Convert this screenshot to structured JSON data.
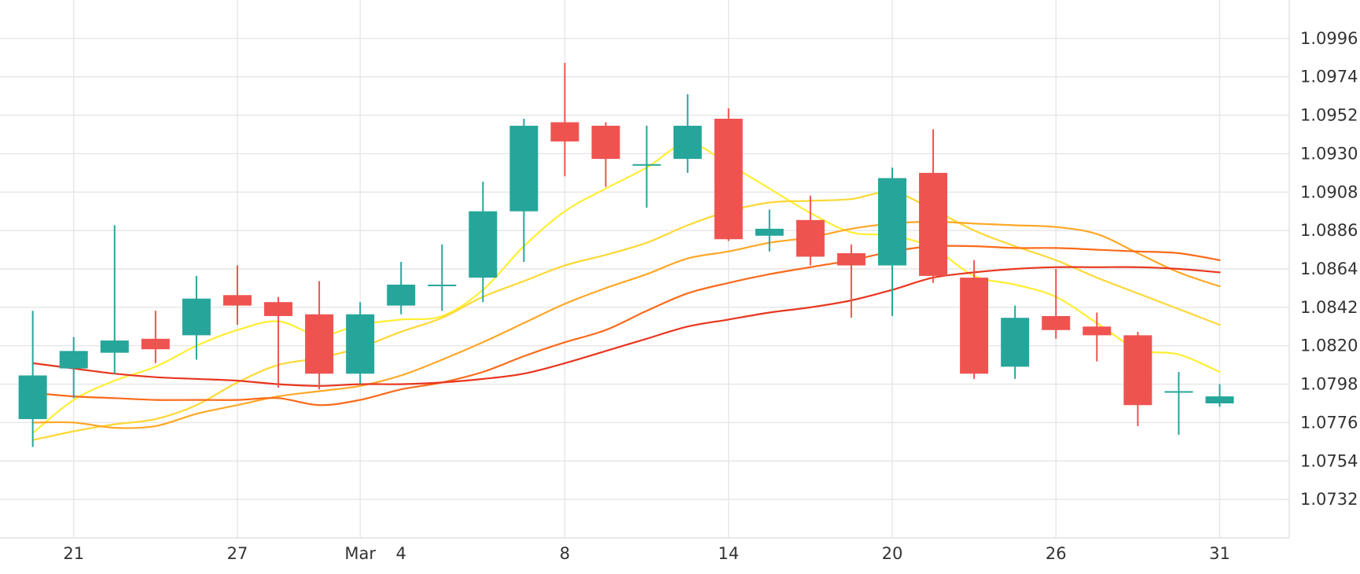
{
  "chart_data": {
    "type": "candlestick",
    "title": "",
    "xlabel": "",
    "ylabel": "",
    "ylim": [
      1.071,
      1.1018
    ],
    "y_ticks": [
      1.0732,
      1.0754,
      1.0776,
      1.0798,
      1.082,
      1.0842,
      1.0864,
      1.0886,
      1.0908,
      1.093,
      1.0952,
      1.0974,
      1.0996
    ],
    "x_range": [
      -0.8,
      30.7
    ],
    "x_ticks": [
      {
        "i": 1,
        "label": "21"
      },
      {
        "i": 5,
        "label": "27"
      },
      {
        "i": 8,
        "label": "Mar"
      },
      {
        "i": 9,
        "label": "4"
      },
      {
        "i": 13,
        "label": "8"
      },
      {
        "i": 17,
        "label": "14"
      },
      {
        "i": 21,
        "label": "20"
      },
      {
        "i": 25,
        "label": "26"
      },
      {
        "i": 29,
        "label": "31"
      }
    ],
    "x_gridlines": [
      1,
      5,
      8,
      13,
      17,
      21,
      25,
      29
    ],
    "colors": {
      "up": "#26a69a",
      "down": "#ef5350",
      "grid": "#e6e6e6"
    },
    "candles": [
      {
        "o": 1.0778,
        "h": 1.084,
        "l": 1.0762,
        "c": 1.0803
      },
      {
        "o": 1.0807,
        "h": 1.0825,
        "l": 1.079,
        "c": 1.0817
      },
      {
        "o": 1.0816,
        "h": 1.0889,
        "l": 1.0804,
        "c": 1.0823
      },
      {
        "o": 1.0824,
        "h": 1.084,
        "l": 1.081,
        "c": 1.0818
      },
      {
        "o": 1.0826,
        "h": 1.086,
        "l": 1.0812,
        "c": 1.0847
      },
      {
        "o": 1.0849,
        "h": 1.0866,
        "l": 1.0832,
        "c": 1.0843
      },
      {
        "o": 1.0845,
        "h": 1.0848,
        "l": 1.0796,
        "c": 1.0837
      },
      {
        "o": 1.0838,
        "h": 1.0857,
        "l": 1.0795,
        "c": 1.0804
      },
      {
        "o": 1.0804,
        "h": 1.0845,
        "l": 1.0798,
        "c": 1.0838
      },
      {
        "o": 1.0843,
        "h": 1.0868,
        "l": 1.0838,
        "c": 1.0855
      },
      {
        "o": 1.0855,
        "h": 1.0878,
        "l": 1.084,
        "c": 1.0855
      },
      {
        "o": 1.0859,
        "h": 1.0914,
        "l": 1.0845,
        "c": 1.0897
      },
      {
        "o": 1.0897,
        "h": 1.095,
        "l": 1.0868,
        "c": 1.0946
      },
      {
        "o": 1.0948,
        "h": 1.0982,
        "l": 1.0917,
        "c": 1.0937
      },
      {
        "o": 1.0946,
        "h": 1.0948,
        "l": 1.0911,
        "c": 1.0927
      },
      {
        "o": 1.0924,
        "h": 1.0946,
        "l": 1.0899,
        "c": 1.0924
      },
      {
        "o": 1.0927,
        "h": 1.0964,
        "l": 1.0919,
        "c": 1.0946
      },
      {
        "o": 1.095,
        "h": 1.0956,
        "l": 1.088,
        "c": 1.0881
      },
      {
        "o": 1.0883,
        "h": 1.0898,
        "l": 1.0874,
        "c": 1.0887
      },
      {
        "o": 1.0892,
        "h": 1.0906,
        "l": 1.0866,
        "c": 1.0871
      },
      {
        "o": 1.0873,
        "h": 1.0878,
        "l": 1.0836,
        "c": 1.0866
      },
      {
        "o": 1.0866,
        "h": 1.0922,
        "l": 1.0837,
        "c": 1.0916
      },
      {
        "o": 1.0919,
        "h": 1.0944,
        "l": 1.0856,
        "c": 1.086
      },
      {
        "o": 1.0859,
        "h": 1.0869,
        "l": 1.0801,
        "c": 1.0804
      },
      {
        "o": 1.0808,
        "h": 1.0843,
        "l": 1.0801,
        "c": 1.0836
      },
      {
        "o": 1.0837,
        "h": 1.0864,
        "l": 1.0824,
        "c": 1.0829
      },
      {
        "o": 1.0831,
        "h": 1.0839,
        "l": 1.0811,
        "c": 1.0826
      },
      {
        "o": 1.0826,
        "h": 1.0828,
        "l": 1.0774,
        "c": 1.0786
      },
      {
        "o": 1.0794,
        "h": 1.0805,
        "l": 1.0769,
        "c": 1.0794
      },
      {
        "o": 1.0787,
        "h": 1.0798,
        "l": 1.0785,
        "c": 1.0791
      }
    ],
    "moving_averages": [
      {
        "color": "#ffee33",
        "values": [
          1.077,
          1.0789,
          1.08,
          1.0808,
          1.082,
          1.0829,
          1.0834,
          1.0826,
          1.0832,
          1.0835,
          1.0837,
          1.0852,
          1.0877,
          1.0897,
          1.091,
          1.0922,
          1.0936,
          1.0924,
          1.091,
          1.0896,
          1.0885,
          1.0883,
          1.0876,
          1.086,
          1.0855,
          1.0848,
          1.0833,
          1.0818,
          1.0815,
          1.0805
        ]
      },
      {
        "color": "#fdd835",
        "values": [
          1.0766,
          1.0771,
          1.0775,
          1.0778,
          1.0786,
          1.0799,
          1.0809,
          1.0813,
          1.0819,
          1.0828,
          1.0836,
          1.0848,
          1.0857,
          1.0866,
          1.0872,
          1.0879,
          1.0889,
          1.0897,
          1.0902,
          1.0903,
          1.0904,
          1.0908,
          1.0898,
          1.0886,
          1.0877,
          1.0869,
          1.0859,
          1.085,
          1.0841,
          1.0832
        ]
      },
      {
        "color": "#ffa726",
        "values": [
          1.0776,
          1.0776,
          1.0773,
          1.0774,
          1.0781,
          1.0786,
          1.0791,
          1.0794,
          1.0797,
          1.0803,
          1.0812,
          1.0822,
          1.0833,
          1.0844,
          1.0853,
          1.0861,
          1.087,
          1.0874,
          1.0879,
          1.0882,
          1.0887,
          1.089,
          1.0891,
          1.089,
          1.0889,
          1.0888,
          1.0884,
          1.0873,
          1.0862,
          1.0854
        ]
      },
      {
        "color": "#fb6a1a",
        "values": [
          1.0793,
          1.0791,
          1.079,
          1.0789,
          1.0789,
          1.0789,
          1.079,
          1.0786,
          1.0789,
          1.0795,
          1.0799,
          1.0805,
          1.0814,
          1.0822,
          1.0829,
          1.084,
          1.085,
          1.0856,
          1.0861,
          1.0865,
          1.0869,
          1.0874,
          1.0877,
          1.0877,
          1.0876,
          1.0876,
          1.0875,
          1.0874,
          1.0873,
          1.0869
        ]
      },
      {
        "color": "#e8361f",
        "values": [
          1.081,
          1.0807,
          1.0804,
          1.0802,
          1.0801,
          1.08,
          1.0798,
          1.0797,
          1.0798,
          1.0798,
          1.0799,
          1.0801,
          1.0804,
          1.081,
          1.0817,
          1.0824,
          1.0831,
          1.0835,
          1.0839,
          1.0842,
          1.0846,
          1.0852,
          1.0859,
          1.0862,
          1.0864,
          1.0865,
          1.0865,
          1.0865,
          1.0864,
          1.0862
        ]
      }
    ]
  }
}
